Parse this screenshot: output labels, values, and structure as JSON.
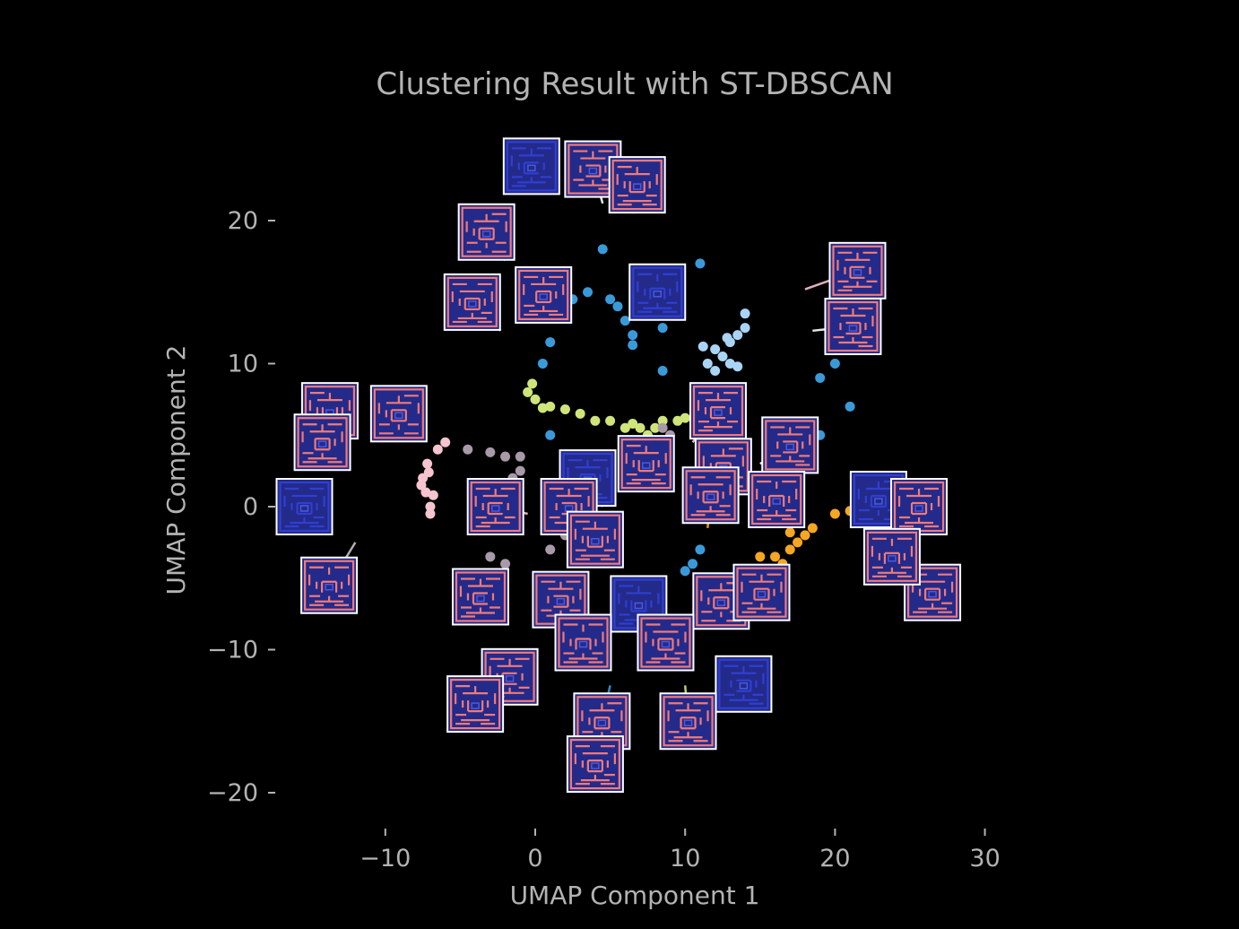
{
  "chart_data": {
    "type": "scatter",
    "title": "Clustering Result with ST-DBSCAN",
    "xlabel": "UMAP Component 1",
    "ylabel": "UMAP Component 2",
    "xlim": [
      -20,
      36
    ],
    "ylim": [
      -22,
      26
    ],
    "x_ticks": [
      -10,
      0,
      10,
      20,
      30
    ],
    "x_tick_labels": [
      "−10",
      "0",
      "10",
      "20",
      "30"
    ],
    "y_ticks": [
      20,
      10,
      0,
      -10,
      -20
    ],
    "y_tick_labels": [
      "20",
      "10",
      "0",
      "−10",
      "−20"
    ],
    "grid": false,
    "legend": "none",
    "thumbnail_colors": {
      "frame": "#ffffff",
      "wall_red": "#f07a7a",
      "wall_blue": "#2f3fd0",
      "background": "#232a8a"
    },
    "series": [
      {
        "color": "#3a9ad9",
        "points": [
          [
            0.5,
            10
          ],
          [
            1,
            11.5
          ],
          [
            2.5,
            14.5
          ],
          [
            3.5,
            15
          ],
          [
            5,
            14.5
          ],
          [
            5.5,
            14
          ],
          [
            6,
            13
          ],
          [
            6.5,
            12
          ],
          [
            6.5,
            11.3
          ],
          [
            11,
            17
          ],
          [
            8.5,
            12.5
          ],
          [
            8.5,
            9.5
          ],
          [
            20,
            10
          ],
          [
            19,
            9
          ],
          [
            21,
            7
          ],
          [
            1,
            5
          ],
          [
            19,
            5
          ],
          [
            11,
            -3
          ],
          [
            10.5,
            -4
          ],
          [
            10,
            -4.5
          ],
          [
            4.5,
            18
          ]
        ]
      },
      {
        "color": "#aad4f5",
        "points": [
          [
            12,
            11
          ],
          [
            11.5,
            10
          ],
          [
            12.5,
            10.5
          ],
          [
            13,
            11.5
          ],
          [
            13.5,
            12
          ],
          [
            14,
            12.5
          ],
          [
            14,
            13.5
          ],
          [
            13,
            10
          ],
          [
            12,
            9.5
          ],
          [
            13.5,
            9.8
          ],
          [
            12.8,
            11.8
          ],
          [
            11.2,
            11.2
          ]
        ]
      },
      {
        "color": "#cfe57a",
        "points": [
          [
            -0.5,
            8
          ],
          [
            0,
            7.5
          ],
          [
            1,
            7
          ],
          [
            2,
            6.8
          ],
          [
            3,
            6.5
          ],
          [
            4,
            6
          ],
          [
            5,
            6
          ],
          [
            6,
            5.5
          ],
          [
            6.5,
            5.8
          ],
          [
            7,
            5.5
          ],
          [
            7.5,
            5
          ],
          [
            8,
            5.5
          ],
          [
            8.5,
            6
          ],
          [
            9.5,
            6
          ],
          [
            10,
            6.2
          ],
          [
            -0.2,
            8.6
          ],
          [
            0.5,
            6.9
          ]
        ]
      },
      {
        "color": "#f5c4cf",
        "points": [
          [
            -7,
            0
          ],
          [
            -7.3,
            1
          ],
          [
            -7.5,
            2
          ],
          [
            -7.2,
            3
          ],
          [
            -6.5,
            4
          ],
          [
            -6,
            4.5
          ],
          [
            -7,
            -0.5
          ],
          [
            -7.6,
            1.5
          ],
          [
            -6.8,
            0.8
          ],
          [
            -7.1,
            2.4
          ]
        ]
      },
      {
        "color": "#a899a8",
        "points": [
          [
            -4.5,
            4
          ],
          [
            -3,
            3.8
          ],
          [
            -2,
            3.5
          ],
          [
            -1,
            3.5
          ],
          [
            -1,
            2.5
          ],
          [
            -1.5,
            2
          ],
          [
            -2,
            1.5
          ],
          [
            -2.5,
            0.5
          ],
          [
            1,
            1.5
          ],
          [
            2,
            1.3
          ],
          [
            3,
            1.2
          ],
          [
            4,
            1
          ],
          [
            -4,
            -1.5
          ],
          [
            -3,
            -3.5
          ],
          [
            -2,
            -4
          ],
          [
            1,
            -3
          ],
          [
            2,
            -2
          ],
          [
            9,
            5
          ],
          [
            8.5,
            5.5
          ]
        ]
      },
      {
        "color": "#f5a623",
        "points": [
          [
            15,
            -3.5
          ],
          [
            16,
            -3.5
          ],
          [
            16.5,
            -4
          ],
          [
            17,
            -3
          ],
          [
            17.5,
            -2.5
          ],
          [
            18,
            -2
          ],
          [
            18.5,
            -1.5
          ],
          [
            20,
            -0.5
          ],
          [
            21,
            -0.3
          ],
          [
            17,
            -1.8
          ]
        ]
      }
    ],
    "thumbnails": [
      {
        "x": -0.25,
        "y": 23.8,
        "tx": 0.3,
        "ty": 22.2
      },
      {
        "x": 3.85,
        "y": 23.6,
        "tx": 4.5,
        "ty": 21.2
      },
      {
        "x": 6.8,
        "y": 22.5,
        "tx": 6.5,
        "ty": 20.5
      },
      {
        "x": -3.25,
        "y": 19.2,
        "tx": -2,
        "ty": 17.2
      },
      {
        "x": 0.55,
        "y": 14.8,
        "tx": 2,
        "ty": 16
      },
      {
        "x": -4.2,
        "y": 14.3,
        "tx": -2.3,
        "ty": 12.3
      },
      {
        "x": 8.15,
        "y": 15,
        "tx": 8.6,
        "ty": 14
      },
      {
        "x": 21.5,
        "y": 16.5,
        "tx": 18,
        "ty": 15.2
      },
      {
        "x": 21.2,
        "y": 12.6,
        "tx": 18.5,
        "ty": 12.3
      },
      {
        "x": -13.7,
        "y": 6.7,
        "tx": -12,
        "ty": 6
      },
      {
        "x": -9.1,
        "y": 6.5,
        "tx": -7.5,
        "ty": 6
      },
      {
        "x": -14.2,
        "y": 4.5,
        "tx": -13,
        "ty": 4
      },
      {
        "x": -15.4,
        "y": 0,
        "tx": -13.6,
        "ty": -0.5
      },
      {
        "x": -13.75,
        "y": -5.5,
        "tx": -12,
        "ty": -2.5
      },
      {
        "x": 12.2,
        "y": 6.7,
        "tx": 10.5,
        "ty": 4.5
      },
      {
        "x": 17,
        "y": 4.3,
        "tx": 15,
        "ty": 3
      },
      {
        "x": 7.4,
        "y": 3,
        "tx": 7,
        "ty": 1.5
      },
      {
        "x": 12.55,
        "y": 2.8,
        "tx": 11.5,
        "ty": 0.5
      },
      {
        "x": 3.5,
        "y": 2,
        "tx": 4.5,
        "ty": 0
      },
      {
        "x": 11.7,
        "y": 0.8,
        "tx": 11.5,
        "ty": -1.5
      },
      {
        "x": 16.1,
        "y": 0.5,
        "tx": 15,
        "ty": -1
      },
      {
        "x": -2.65,
        "y": 0,
        "tx": -0.5,
        "ty": -0.5
      },
      {
        "x": 2.25,
        "y": 0,
        "tx": 2.5,
        "ty": -2
      },
      {
        "x": 4,
        "y": -2.3,
        "tx": 4.5,
        "ty": -4
      },
      {
        "x": 22.9,
        "y": 0.5,
        "tx": 21,
        "ty": -1
      },
      {
        "x": 25.6,
        "y": 0,
        "tx": 23.5,
        "ty": -1.5
      },
      {
        "x": 26.5,
        "y": -6,
        "tx": 24.5,
        "ty": -4
      },
      {
        "x": 23.8,
        "y": -3.5,
        "tx": 22.5,
        "ty": -3
      },
      {
        "x": -3.65,
        "y": -6.3,
        "tx": -2,
        "ty": -5.5
      },
      {
        "x": 1.7,
        "y": -6.5,
        "tx": 3,
        "ty": -6
      },
      {
        "x": 6.9,
        "y": -6.8,
        "tx": 7.5,
        "ty": -6
      },
      {
        "x": 12.4,
        "y": -6.6,
        "tx": 12,
        "ty": -6
      },
      {
        "x": 15.1,
        "y": -6,
        "tx": 14.5,
        "ty": -5.5
      },
      {
        "x": 8.7,
        "y": -9.5,
        "tx": 9,
        "ty": -8.5
      },
      {
        "x": 3.2,
        "y": -9.5,
        "tx": 4,
        "ty": -8.5
      },
      {
        "x": -1.7,
        "y": -11.9,
        "tx": -0.5,
        "ty": -10.5
      },
      {
        "x": 13.9,
        "y": -12.4,
        "tx": 13,
        "ty": -10.5
      },
      {
        "x": -4,
        "y": -13.8,
        "tx": -2.5,
        "ty": -11.5
      },
      {
        "x": 4.45,
        "y": -15,
        "tx": 5,
        "ty": -12.5
      },
      {
        "x": 10.2,
        "y": -15,
        "tx": 10,
        "ty": -12.5
      },
      {
        "x": 4,
        "y": -18,
        "tx": 4,
        "ty": -16
      }
    ]
  }
}
